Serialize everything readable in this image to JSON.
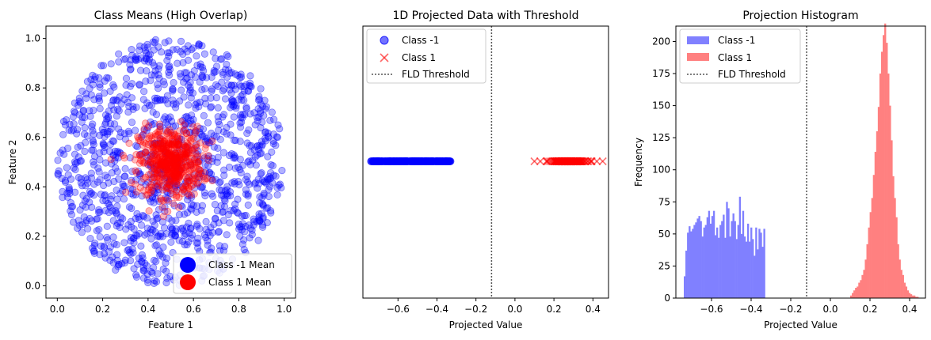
{
  "chart_data": [
    {
      "type": "scatter",
      "title": "Class Means (High Overlap)",
      "xlabel": "Feature 1",
      "ylabel": "Feature 2",
      "xlim": [
        -0.05,
        1.05
      ],
      "ylim": [
        -0.05,
        1.05
      ],
      "xticks": [
        0.0,
        0.2,
        0.4,
        0.6,
        0.8,
        1.0
      ],
      "yticks": [
        0.0,
        0.2,
        0.4,
        0.6,
        0.8,
        1.0
      ],
      "xtick_labels": [
        "0.0",
        "0.2",
        "0.4",
        "0.6",
        "0.8",
        "1.0"
      ],
      "ytick_labels": [
        "0.0",
        "0.2",
        "0.4",
        "0.6",
        "0.8",
        "1.0"
      ],
      "series": [
        {
          "name": "Class -1",
          "color": "#0000ff",
          "marker": "circle",
          "center": [
            0.5,
            0.5
          ],
          "radius": 0.5,
          "count": 1200
        },
        {
          "name": "Class 1",
          "color": "#ff0000",
          "marker": "circle",
          "center": [
            0.5,
            0.5
          ],
          "spread": 0.07,
          "count": 500
        }
      ],
      "means": [
        {
          "name": "Class -1 Mean",
          "x": 0.5,
          "y": 0.5,
          "color": "#0000ff"
        },
        {
          "name": "Class 1 Mean",
          "x": 0.5,
          "y": 0.5,
          "color": "#ff0000"
        }
      ],
      "legend": {
        "placement": "lower-right",
        "entries": [
          "Class -1 Mean",
          "Class 1 Mean"
        ]
      },
      "grid": false
    },
    {
      "type": "scatter",
      "title": "1D Projected Data with Threshold",
      "xlabel": "Projected Value",
      "ylabel": "",
      "xlim": [
        -0.78,
        0.48
      ],
      "xticks": [
        -0.6,
        -0.4,
        -0.2,
        0.0,
        0.2,
        0.4
      ],
      "xtick_labels": [
        "−0.6",
        "−0.4",
        "−0.2",
        "0.0",
        "0.2",
        "0.4"
      ],
      "y_value": 0.5,
      "series": [
        {
          "name": "Class -1",
          "color": "#0000ff",
          "marker": "circle",
          "range": [
            -0.74,
            -0.33
          ]
        },
        {
          "name": "Class 1",
          "color": "#ff0000",
          "marker": "x",
          "range": [
            0.1,
            0.45
          ]
        }
      ],
      "threshold": {
        "name": "FLD Threshold",
        "x": -0.12
      },
      "legend": {
        "placement": "top-left",
        "entries": [
          "Class -1",
          "Class 1",
          "FLD Threshold"
        ]
      },
      "grid": false
    },
    {
      "type": "bar",
      "title": "Projection Histogram",
      "xlabel": "Projected Value",
      "ylabel": "Frequency",
      "xlim": [
        -0.78,
        0.48
      ],
      "ylim": [
        0,
        212
      ],
      "xticks": [
        -0.6,
        -0.4,
        -0.2,
        0.0,
        0.2,
        0.4
      ],
      "xtick_labels": [
        "−0.6",
        "−0.4",
        "−0.2",
        "0.0",
        "0.2",
        "0.4"
      ],
      "yticks": [
        0,
        25,
        50,
        75,
        100,
        125,
        150,
        175,
        200
      ],
      "ytick_labels": [
        "0",
        "25",
        "50",
        "75",
        "100",
        "125",
        "150",
        "175",
        "200"
      ],
      "series": [
        {
          "name": "Class -1",
          "color": "#8080ff",
          "bin_start": -0.74,
          "bin_width": 0.0082,
          "values": [
            17,
            37,
            51,
            56,
            52,
            54,
            57,
            59,
            62,
            64,
            60,
            48,
            55,
            57,
            63,
            68,
            58,
            64,
            68,
            49,
            55,
            47,
            57,
            60,
            65,
            47,
            75,
            70,
            48,
            60,
            66,
            60,
            46,
            57,
            79,
            50,
            68,
            48,
            44,
            58,
            44,
            55,
            46,
            33,
            55,
            38,
            54,
            51,
            40,
            54
          ]
        },
        {
          "name": "Class 1",
          "color": "#ff8080",
          "bin_start": 0.1,
          "bin_width": 0.0082,
          "values": [
            2,
            4,
            6,
            8,
            9,
            12,
            14,
            18,
            22,
            30,
            42,
            55,
            67,
            78,
            96,
            114,
            130,
            149,
            175,
            192,
            205,
            214,
            199,
            175,
            150,
            123,
            95,
            78,
            63,
            42,
            30,
            22,
            18,
            12,
            9,
            6,
            4,
            3,
            2,
            2,
            1,
            1
          ]
        }
      ],
      "threshold": {
        "name": "FLD Threshold",
        "x": -0.12
      },
      "legend": {
        "placement": "top-left",
        "entries": [
          "Class -1",
          "Class 1",
          "FLD Threshold"
        ]
      },
      "grid": false
    }
  ]
}
